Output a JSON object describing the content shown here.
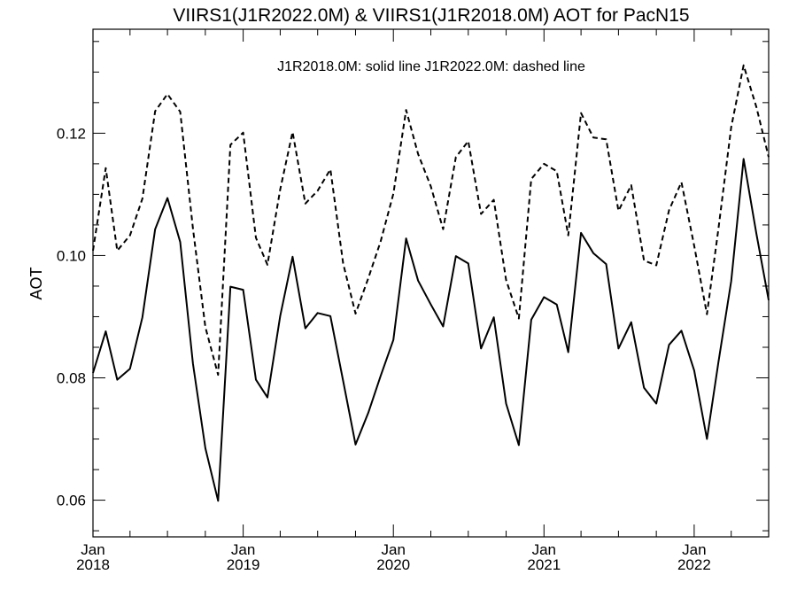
{
  "chart_data": {
    "type": "line",
    "title": "VIIRS1(J1R2022.0M) & VIIRS1(J1R2018.0M)  AOT for PacN15",
    "annotation": "J1R2018.0M: solid line   J1R2022.0M: dashed line",
    "xlabel": "",
    "ylabel": "AOT",
    "xlim": [
      "2018-01-01",
      "2022-07-01"
    ],
    "ylim": [
      0.054,
      0.137
    ],
    "yticks": [
      0.06,
      0.08,
      0.1,
      0.12
    ],
    "ytick_labels": [
      "0.06",
      "0.08",
      "0.10",
      "0.12"
    ],
    "xticks": [
      {
        "month": "Jan",
        "year": "2018",
        "date": "2018-01-01"
      },
      {
        "month": "Jan",
        "year": "2019",
        "date": "2019-01-01"
      },
      {
        "month": "Jan",
        "year": "2020",
        "date": "2020-01-01"
      },
      {
        "month": "Jan",
        "year": "2021",
        "date": "2021-01-01"
      },
      {
        "month": "Jan",
        "year": "2022",
        "date": "2022-01-01"
      }
    ],
    "grid": false,
    "x": [
      "2018-01-01",
      "2018-02-01",
      "2018-03-01",
      "2018-04-01",
      "2018-05-01",
      "2018-06-01",
      "2018-07-01",
      "2018-08-01",
      "2018-09-01",
      "2018-10-01",
      "2018-11-01",
      "2018-12-01",
      "2019-01-01",
      "2019-02-01",
      "2019-03-01",
      "2019-04-01",
      "2019-05-01",
      "2019-06-01",
      "2019-07-01",
      "2019-08-01",
      "2019-09-01",
      "2019-10-01",
      "2019-11-01",
      "2019-12-01",
      "2020-01-01",
      "2020-02-01",
      "2020-03-01",
      "2020-04-01",
      "2020-05-01",
      "2020-06-01",
      "2020-07-01",
      "2020-08-01",
      "2020-09-01",
      "2020-10-01",
      "2020-11-01",
      "2020-12-01",
      "2021-01-01",
      "2021-02-01",
      "2021-03-01",
      "2021-04-01",
      "2021-05-01",
      "2021-06-01",
      "2021-07-01",
      "2021-08-01",
      "2021-09-01",
      "2021-10-01",
      "2021-11-01",
      "2021-12-01",
      "2022-01-01",
      "2022-02-01",
      "2022-03-01",
      "2022-04-01",
      "2022-05-01",
      "2022-06-01",
      "2022-07-01"
    ],
    "series": [
      {
        "name": "J1R2018.0M",
        "style": "solid",
        "color": "#000000",
        "values": [
          0.0808,
          0.0876,
          0.0797,
          0.0815,
          0.0899,
          0.1043,
          0.1094,
          0.1022,
          0.0823,
          0.0685,
          0.0599,
          0.0949,
          0.0944,
          0.0797,
          0.0768,
          0.0901,
          0.0998,
          0.0881,
          0.0906,
          0.0901,
          0.0795,
          0.0691,
          0.0743,
          0.0803,
          0.0862,
          0.1028,
          0.0959,
          0.092,
          0.0884,
          0.0999,
          0.0987,
          0.0848,
          0.0899,
          0.0758,
          0.069,
          0.0895,
          0.0932,
          0.092,
          0.0842,
          0.1037,
          0.1004,
          0.0986,
          0.0848,
          0.0891,
          0.0784,
          0.0758,
          0.0854,
          0.0877,
          0.0812,
          0.07,
          0.0826,
          0.0958,
          0.1158,
          0.1036,
          0.0927
        ]
      },
      {
        "name": "J1R2022.0M",
        "style": "dashed",
        "color": "#000000",
        "values": [
          0.1008,
          0.1143,
          0.1008,
          0.1033,
          0.1093,
          0.1236,
          0.1264,
          0.1235,
          0.1044,
          0.0883,
          0.0805,
          0.1181,
          0.1201,
          0.1029,
          0.0985,
          0.1108,
          0.1202,
          0.1085,
          0.1106,
          0.1141,
          0.0987,
          0.0905,
          0.0963,
          0.1023,
          0.1101,
          0.1238,
          0.1166,
          0.1113,
          0.1043,
          0.1161,
          0.1187,
          0.1068,
          0.1091,
          0.096,
          0.0897,
          0.1125,
          0.115,
          0.1138,
          0.1033,
          0.1233,
          0.1193,
          0.119,
          0.1073,
          0.1115,
          0.0992,
          0.0984,
          0.1074,
          0.112,
          0.1016,
          0.0904,
          0.1044,
          0.121,
          0.1311,
          0.1243,
          0.1161
        ]
      }
    ]
  }
}
